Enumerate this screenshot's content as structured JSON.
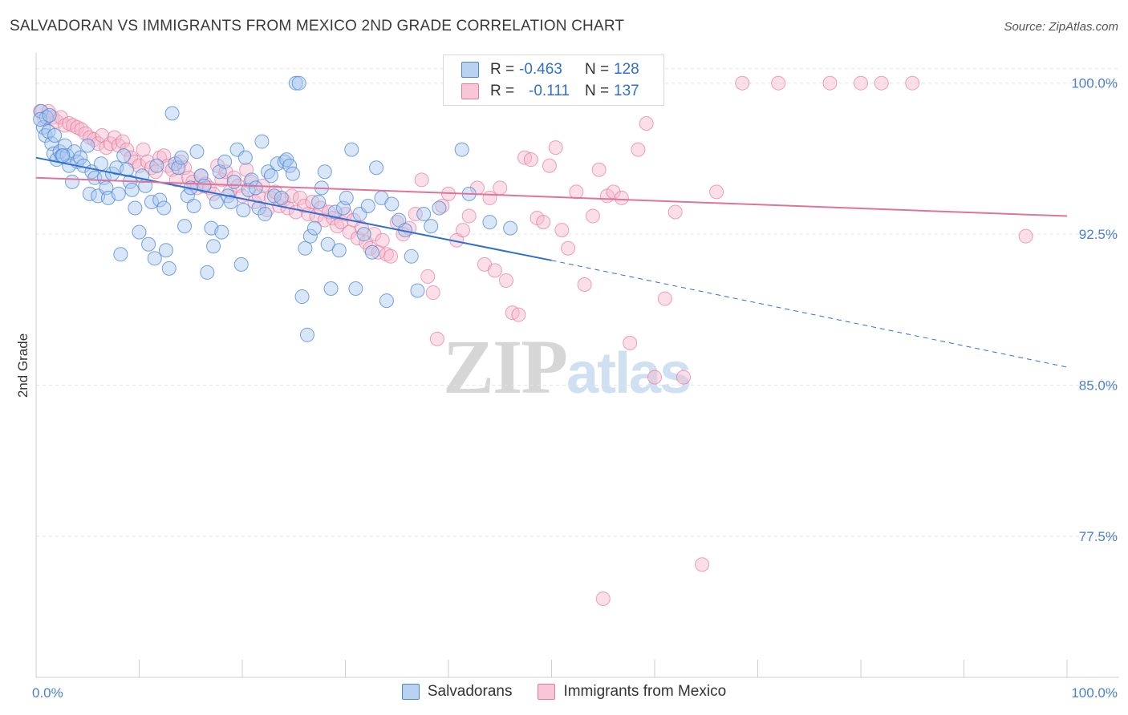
{
  "header": {
    "title": "SALVADORAN VS IMMIGRANTS FROM MEXICO 2ND GRADE CORRELATION CHART",
    "source": "Source: ZipAtlas.com"
  },
  "watermark": {
    "zip": "ZIP",
    "atlas": "atlas"
  },
  "legend": {
    "rows": [
      {
        "r_label": "R =",
        "r_value": "-0.463",
        "n_label": "N =",
        "n_value": "128"
      },
      {
        "r_label": "R =",
        "r_value": "-0.111",
        "n_label": "N =",
        "n_value": "137"
      }
    ],
    "bottom": [
      {
        "label": "Salvadorans"
      },
      {
        "label": "Immigrants from Mexico"
      }
    ]
  },
  "colors": {
    "salvadorans_fill": "#a9c8ef",
    "salvadorans_stroke": "#4a86d6",
    "salvadorans_line": "#2f6fd0",
    "mexico_fill": "#f6b9cc",
    "mexico_stroke": "#e27ba0",
    "mexico_line": "#e0739a",
    "tick_label": "#4a7fd1",
    "grid": "#e3e3e3"
  },
  "chart_data": {
    "type": "scatter",
    "title": "SALVADORAN VS IMMIGRANTS FROM MEXICO 2ND GRADE CORRELATION CHART",
    "xlabel": "",
    "ylabel": "2nd Grade",
    "xlim": [
      0,
      100
    ],
    "ylim": [
      70.5,
      101.5
    ],
    "x_tick_labels": [
      {
        "value": 0,
        "label": "0.0%"
      },
      {
        "value": 100,
        "label": "100.0%"
      }
    ],
    "y_ticks": [
      {
        "value": 100,
        "label": "100.0%"
      },
      {
        "value": 92.5,
        "label": "92.5%"
      },
      {
        "value": 85,
        "label": "85.0%"
      },
      {
        "value": 77.5,
        "label": "77.5%"
      }
    ],
    "grid": true,
    "series": [
      {
        "name": "Salvadorans",
        "r": -0.463,
        "n": 128,
        "trend": {
          "x0": 0,
          "y0": 96.3,
          "x1": 50,
          "y1": 91.2,
          "dash_to_x": 100,
          "dash_to_y": 85.9
        },
        "points": [
          [
            0.5,
            98.6
          ],
          [
            0.7,
            97.8
          ],
          [
            0.9,
            97.4
          ],
          [
            1.0,
            98.3
          ],
          [
            1.2,
            97.6
          ],
          [
            1.5,
            97.0
          ],
          [
            1.7,
            96.5
          ],
          [
            1.8,
            97.4
          ],
          [
            2.0,
            96.2
          ],
          [
            2.3,
            96.6
          ],
          [
            2.5,
            96.4
          ],
          [
            2.8,
            96.9
          ],
          [
            3.0,
            96.4
          ],
          [
            3.2,
            95.9
          ],
          [
            3.5,
            95.1
          ],
          [
            3.7,
            96.6
          ],
          [
            4.0,
            96.1
          ],
          [
            4.3,
            96.3
          ],
          [
            4.6,
            95.9
          ],
          [
            5.0,
            96.9
          ],
          [
            5.2,
            94.5
          ],
          [
            5.4,
            95.6
          ],
          [
            5.7,
            95.3
          ],
          [
            6.0,
            94.4
          ],
          [
            6.3,
            96.0
          ],
          [
            6.6,
            95.3
          ],
          [
            6.8,
            94.8
          ],
          [
            7.0,
            94.3
          ],
          [
            7.4,
            95.5
          ],
          [
            7.8,
            95.8
          ],
          [
            8.0,
            94.5
          ],
          [
            8.2,
            91.5
          ],
          [
            8.5,
            96.4
          ],
          [
            8.8,
            95.7
          ],
          [
            9.1,
            95.1
          ],
          [
            9.3,
            94.7
          ],
          [
            9.6,
            93.8
          ],
          [
            10.0,
            92.6
          ],
          [
            10.3,
            95.4
          ],
          [
            10.6,
            94.9
          ],
          [
            10.9,
            92.0
          ],
          [
            11.2,
            94.1
          ],
          [
            11.5,
            91.3
          ],
          [
            11.7,
            95.9
          ],
          [
            12.0,
            94.2
          ],
          [
            12.4,
            93.8
          ],
          [
            12.6,
            91.7
          ],
          [
            12.9,
            90.8
          ],
          [
            13.2,
            98.5
          ],
          [
            13.5,
            96.0
          ],
          [
            13.8,
            95.8
          ],
          [
            14.1,
            96.3
          ],
          [
            14.4,
            92.9
          ],
          [
            14.7,
            94.4
          ],
          [
            15.0,
            94.8
          ],
          [
            15.3,
            93.9
          ],
          [
            15.6,
            96.6
          ],
          [
            16.0,
            95.4
          ],
          [
            16.3,
            94.9
          ],
          [
            16.6,
            90.6
          ],
          [
            17.0,
            92.8
          ],
          [
            17.2,
            91.9
          ],
          [
            17.5,
            94.1
          ],
          [
            17.8,
            95.6
          ],
          [
            18.0,
            92.6
          ],
          [
            18.3,
            96.1
          ],
          [
            18.6,
            94.4
          ],
          [
            18.9,
            94.1
          ],
          [
            19.2,
            95.1
          ],
          [
            19.5,
            96.7
          ],
          [
            19.9,
            91.0
          ],
          [
            20.1,
            93.7
          ],
          [
            20.3,
            96.3
          ],
          [
            20.6,
            94.7
          ],
          [
            20.9,
            95.2
          ],
          [
            21.3,
            94.8
          ],
          [
            21.6,
            93.8
          ],
          [
            21.9,
            97.1
          ],
          [
            22.2,
            93.5
          ],
          [
            22.5,
            95.6
          ],
          [
            22.8,
            95.4
          ],
          [
            23.1,
            94.4
          ],
          [
            23.4,
            96.0
          ],
          [
            23.8,
            94.3
          ],
          [
            24.1,
            96.1
          ],
          [
            24.3,
            96.2
          ],
          [
            24.6,
            95.9
          ],
          [
            24.9,
            95.5
          ],
          [
            25.2,
            100.0
          ],
          [
            25.5,
            100.0
          ],
          [
            25.8,
            89.4
          ],
          [
            26.1,
            91.8
          ],
          [
            26.3,
            87.5
          ],
          [
            26.6,
            92.4
          ],
          [
            27.0,
            92.8
          ],
          [
            27.4,
            94.1
          ],
          [
            27.7,
            94.8
          ],
          [
            28.0,
            95.6
          ],
          [
            28.3,
            92.0
          ],
          [
            28.6,
            89.8
          ],
          [
            29.0,
            93.6
          ],
          [
            29.4,
            91.7
          ],
          [
            29.8,
            93.8
          ],
          [
            30.1,
            94.3
          ],
          [
            30.6,
            96.7
          ],
          [
            31.0,
            89.8
          ],
          [
            31.4,
            93.5
          ],
          [
            31.8,
            92.5
          ],
          [
            32.2,
            93.9
          ],
          [
            32.6,
            91.6
          ],
          [
            33.0,
            95.8
          ],
          [
            33.5,
            94.3
          ],
          [
            34.0,
            89.2
          ],
          [
            34.5,
            94.0
          ],
          [
            35.2,
            93.2
          ],
          [
            35.8,
            92.7
          ],
          [
            36.4,
            91.4
          ],
          [
            37.0,
            89.7
          ],
          [
            37.6,
            93.5
          ],
          [
            38.3,
            92.9
          ],
          [
            39.1,
            93.8
          ],
          [
            41.3,
            96.7
          ],
          [
            42.0,
            94.5
          ],
          [
            44.0,
            93.1
          ],
          [
            46.0,
            92.8
          ],
          [
            0.4,
            98.2
          ],
          [
            1.3,
            98.4
          ],
          [
            2.6,
            96.4
          ]
        ]
      },
      {
        "name": "Immigrants from Mexico",
        "r": -0.111,
        "n": 137,
        "trend": {
          "x0": 0,
          "y0": 95.3,
          "x1": 100,
          "y1": 93.4
        },
        "points": [
          [
            0.4,
            98.6
          ],
          [
            0.8,
            98.2
          ],
          [
            1.2,
            98.6
          ],
          [
            1.6,
            98.3
          ],
          [
            2.0,
            98.1
          ],
          [
            2.4,
            98.3
          ],
          [
            2.8,
            97.9
          ],
          [
            3.2,
            98.0
          ],
          [
            3.6,
            97.9
          ],
          [
            4.0,
            97.8
          ],
          [
            4.4,
            97.7
          ],
          [
            4.8,
            97.5
          ],
          [
            5.2,
            97.3
          ],
          [
            5.6,
            97.2
          ],
          [
            6.0,
            97.0
          ],
          [
            6.4,
            97.4
          ],
          [
            6.8,
            96.8
          ],
          [
            7.2,
            97.0
          ],
          [
            7.6,
            97.3
          ],
          [
            8.0,
            96.9
          ],
          [
            8.4,
            97.1
          ],
          [
            8.8,
            96.7
          ],
          [
            9.2,
            96.3
          ],
          [
            9.6,
            96.1
          ],
          [
            10.0,
            95.9
          ],
          [
            10.4,
            96.7
          ],
          [
            10.8,
            96.1
          ],
          [
            11.2,
            95.8
          ],
          [
            11.6,
            95.6
          ],
          [
            12.0,
            96.3
          ],
          [
            12.4,
            96.4
          ],
          [
            12.8,
            95.9
          ],
          [
            13.2,
            95.7
          ],
          [
            13.6,
            95.2
          ],
          [
            14.0,
            96.1
          ],
          [
            14.4,
            95.8
          ],
          [
            14.8,
            95.3
          ],
          [
            15.2,
            95.1
          ],
          [
            15.6,
            94.8
          ],
          [
            16.0,
            95.4
          ],
          [
            16.4,
            95.0
          ],
          [
            16.8,
            94.8
          ],
          [
            17.2,
            94.5
          ],
          [
            17.6,
            95.9
          ],
          [
            18.0,
            95.2
          ],
          [
            18.4,
            95.6
          ],
          [
            18.8,
            94.6
          ],
          [
            19.2,
            95.3
          ],
          [
            19.6,
            94.9
          ],
          [
            20.0,
            94.4
          ],
          [
            20.4,
            95.7
          ],
          [
            20.8,
            95.1
          ],
          [
            21.2,
            94.1
          ],
          [
            21.6,
            94.4
          ],
          [
            22.0,
            94.9
          ],
          [
            22.4,
            93.7
          ],
          [
            22.8,
            94.3
          ],
          [
            23.2,
            94.6
          ],
          [
            23.6,
            93.9
          ],
          [
            24.0,
            94.2
          ],
          [
            24.4,
            93.8
          ],
          [
            24.8,
            94.4
          ],
          [
            25.2,
            93.6
          ],
          [
            25.6,
            94.3
          ],
          [
            26.0,
            93.9
          ],
          [
            26.4,
            93.5
          ],
          [
            26.8,
            94.1
          ],
          [
            27.2,
            93.4
          ],
          [
            27.6,
            93.8
          ],
          [
            28.0,
            93.2
          ],
          [
            28.4,
            93.6
          ],
          [
            28.8,
            93.3
          ],
          [
            29.2,
            92.9
          ],
          [
            29.6,
            93.1
          ],
          [
            30.0,
            93.5
          ],
          [
            30.4,
            92.6
          ],
          [
            30.8,
            93.2
          ],
          [
            31.2,
            92.3
          ],
          [
            31.6,
            92.8
          ],
          [
            32.0,
            92.1
          ],
          [
            32.4,
            91.8
          ],
          [
            32.8,
            92.5
          ],
          [
            33.2,
            91.6
          ],
          [
            33.6,
            92.2
          ],
          [
            34.0,
            91.5
          ],
          [
            34.4,
            91.4
          ],
          [
            35.0,
            93.1
          ],
          [
            35.6,
            92.5
          ],
          [
            36.2,
            92.8
          ],
          [
            36.8,
            93.5
          ],
          [
            37.4,
            95.2
          ],
          [
            38.0,
            90.4
          ],
          [
            38.5,
            89.6
          ],
          [
            38.9,
            87.3
          ],
          [
            39.4,
            93.9
          ],
          [
            40.0,
            94.5
          ],
          [
            40.8,
            92.2
          ],
          [
            41.4,
            92.7
          ],
          [
            42.0,
            93.4
          ],
          [
            42.8,
            94.8
          ],
          [
            43.5,
            91.0
          ],
          [
            44.0,
            94.3
          ],
          [
            44.5,
            90.7
          ],
          [
            45.0,
            94.8
          ],
          [
            45.6,
            90.2
          ],
          [
            46.2,
            88.6
          ],
          [
            46.8,
            88.5
          ],
          [
            47.4,
            96.3
          ],
          [
            48.0,
            96.2
          ],
          [
            48.6,
            93.3
          ],
          [
            49.2,
            93.1
          ],
          [
            49.8,
            95.9
          ],
          [
            50.4,
            96.8
          ],
          [
            51.0,
            92.7
          ],
          [
            51.6,
            91.8
          ],
          [
            52.4,
            94.6
          ],
          [
            53.2,
            90.0
          ],
          [
            54.0,
            93.4
          ],
          [
            54.6,
            95.7
          ],
          [
            55.4,
            94.4
          ],
          [
            56.0,
            94.6
          ],
          [
            56.8,
            94.3
          ],
          [
            57.6,
            87.1
          ],
          [
            58.4,
            96.7
          ],
          [
            59.2,
            98.0
          ],
          [
            60.0,
            85.4
          ],
          [
            61.0,
            89.3
          ],
          [
            62.0,
            93.6
          ],
          [
            62.8,
            85.4
          ],
          [
            64.6,
            76.1
          ],
          [
            66.0,
            94.6
          ],
          [
            68.5,
            100.0
          ],
          [
            72.0,
            100.0
          ],
          [
            80.0,
            100.0
          ],
          [
            77.0,
            100.0
          ],
          [
            82.0,
            100.0
          ],
          [
            85.0,
            100.0
          ],
          [
            58.0,
            100.0
          ],
          [
            96.0,
            92.4
          ],
          [
            55.0,
            74.4
          ],
          [
            50.0,
            100.0
          ]
        ]
      }
    ]
  }
}
